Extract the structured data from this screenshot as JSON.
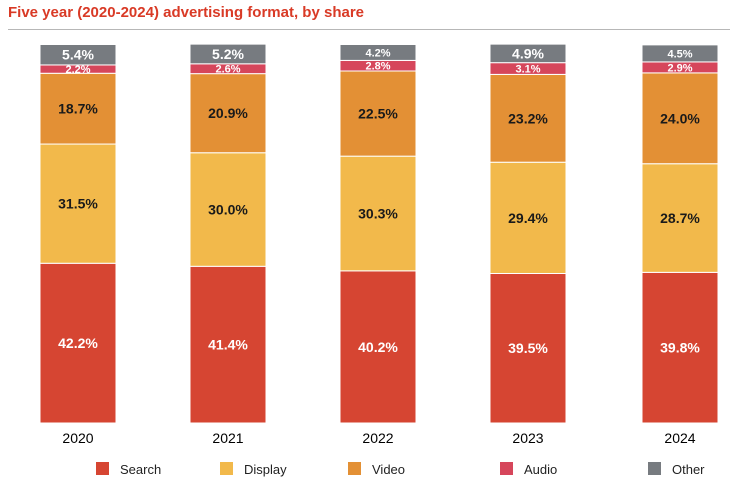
{
  "title": "Five year (2020-2024) advertising format, by share",
  "colors": {
    "Search": "#d64532",
    "Display": "#f2b94b",
    "Video": "#e39035",
    "Audio": "#d6465b",
    "Other": "#777b80",
    "title": "#d93a26"
  },
  "chart_data": {
    "type": "bar",
    "stacked": true,
    "title": "Five year (2020-2024) advertising format, by share",
    "categories": [
      "2020",
      "2021",
      "2022",
      "2023",
      "2024"
    ],
    "series": [
      {
        "name": "Search",
        "values": [
          42.2,
          41.4,
          40.2,
          39.5,
          39.8
        ],
        "labels": [
          "42.2%",
          "41.4%",
          "40.2%",
          "39.5%",
          "39.8%"
        ]
      },
      {
        "name": "Display",
        "values": [
          31.5,
          30.0,
          30.3,
          29.4,
          28.7
        ],
        "labels": [
          "31.5%",
          "30.0%",
          "30.3%",
          "29.4%",
          "28.7%"
        ]
      },
      {
        "name": "Video",
        "values": [
          18.7,
          20.9,
          22.5,
          23.2,
          24.0
        ],
        "labels": [
          "18.7%",
          "20.9%",
          "22.5%",
          "23.2%",
          "24.0%"
        ]
      },
      {
        "name": "Audio",
        "values": [
          2.2,
          2.6,
          2.8,
          3.1,
          2.9
        ],
        "labels": [
          "2.2%",
          "2.6%",
          "2.8%",
          "3.1%",
          "2.9%"
        ]
      },
      {
        "name": "Other",
        "values": [
          5.4,
          5.2,
          4.2,
          4.9,
          4.5
        ],
        "labels": [
          "5.4%",
          "5.2%",
          "4.2%",
          "4.9%",
          "4.5%"
        ]
      }
    ],
    "legend": [
      "Search",
      "Display",
      "Video",
      "Audio",
      "Other"
    ],
    "legend_position": "bottom",
    "grid": false
  }
}
